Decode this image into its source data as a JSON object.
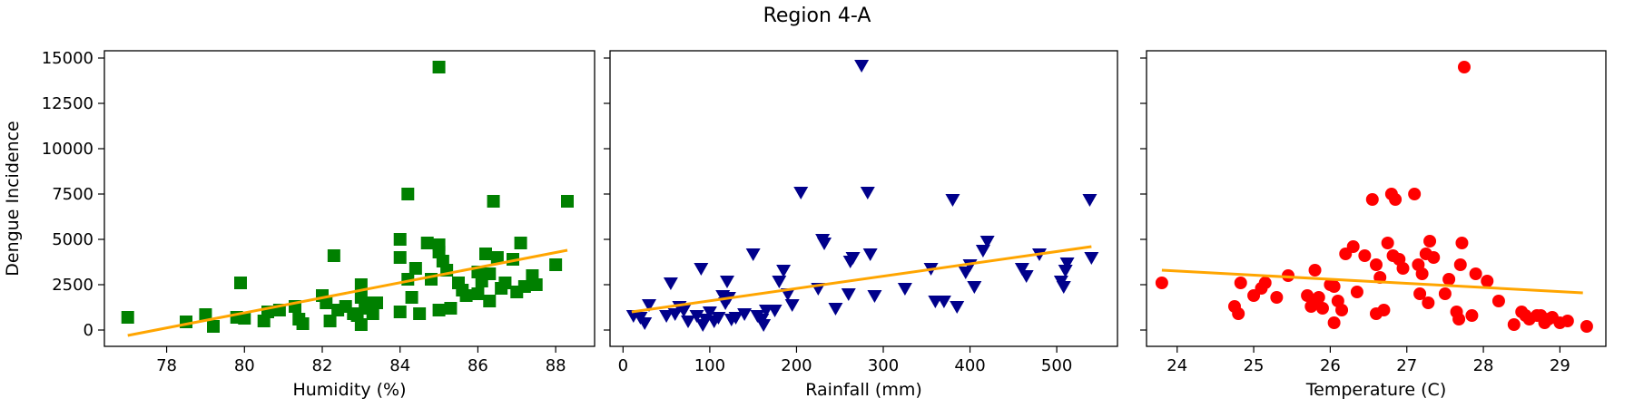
{
  "figure": {
    "title": "Region 4-A"
  },
  "chart_data": [
    {
      "type": "scatter",
      "xlabel": "Humidity (%)",
      "ylabel": "Dengue Incidence",
      "xlim": [
        76.4,
        89.0
      ],
      "ylim": [
        -900,
        15400
      ],
      "xticks": [
        78,
        80,
        82,
        84,
        86,
        88
      ],
      "yticks": [
        0,
        2500,
        5000,
        7500,
        10000,
        12500,
        15000
      ],
      "marker": "square",
      "color": "#008000",
      "trend_color": "#FFA500",
      "trend": {
        "x": [
          77.0,
          88.3
        ],
        "y": [
          -300,
          4400
        ]
      },
      "points": [
        [
          77.0,
          700
        ],
        [
          78.5,
          450
        ],
        [
          79.0,
          850
        ],
        [
          79.2,
          200
        ],
        [
          79.8,
          700
        ],
        [
          79.9,
          2600
        ],
        [
          80.0,
          650
        ],
        [
          80.5,
          500
        ],
        [
          80.6,
          1000
        ],
        [
          80.9,
          1100
        ],
        [
          81.3,
          1300
        ],
        [
          81.4,
          600
        ],
        [
          81.5,
          350
        ],
        [
          82.0,
          1900
        ],
        [
          82.1,
          1500
        ],
        [
          82.2,
          500
        ],
        [
          82.3,
          4100
        ],
        [
          82.4,
          1100
        ],
        [
          82.6,
          1300
        ],
        [
          82.8,
          900
        ],
        [
          82.9,
          800
        ],
        [
          83.0,
          2500
        ],
        [
          83.0,
          1800
        ],
        [
          83.0,
          300
        ],
        [
          83.1,
          1200
        ],
        [
          83.3,
          1500
        ],
        [
          83.3,
          900
        ],
        [
          83.4,
          1500
        ],
        [
          84.0,
          5000
        ],
        [
          84.0,
          4000
        ],
        [
          84.0,
          1000
        ],
        [
          84.2,
          7500
        ],
        [
          84.2,
          2800
        ],
        [
          84.3,
          1800
        ],
        [
          84.4,
          3400
        ],
        [
          84.5,
          900
        ],
        [
          84.7,
          4800
        ],
        [
          84.8,
          2800
        ],
        [
          85.0,
          14500
        ],
        [
          85.0,
          4700
        ],
        [
          85.0,
          4300
        ],
        [
          85.0,
          1100
        ],
        [
          85.1,
          3800
        ],
        [
          85.2,
          3300
        ],
        [
          85.3,
          1200
        ],
        [
          85.5,
          2600
        ],
        [
          85.6,
          2200
        ],
        [
          85.7,
          1900
        ],
        [
          86.0,
          3200
        ],
        [
          86.0,
          2000
        ],
        [
          86.1,
          2700
        ],
        [
          86.2,
          4200
        ],
        [
          86.3,
          1600
        ],
        [
          86.3,
          3100
        ],
        [
          86.4,
          7100
        ],
        [
          86.5,
          4000
        ],
        [
          86.6,
          2300
        ],
        [
          86.7,
          2600
        ],
        [
          86.9,
          3900
        ],
        [
          87.0,
          2100
        ],
        [
          87.1,
          4800
        ],
        [
          87.2,
          2400
        ],
        [
          87.4,
          3000
        ],
        [
          87.5,
          2500
        ],
        [
          88.0,
          3600
        ],
        [
          88.3,
          7100
        ]
      ]
    },
    {
      "type": "scatter",
      "xlabel": "Rainfall (mm)",
      "ylabel": "",
      "xlim": [
        -15,
        570
      ],
      "ylim": [
        -900,
        15400
      ],
      "xticks": [
        0,
        100,
        200,
        300,
        400,
        500
      ],
      "yticks": [
        0,
        2500,
        5000,
        7500,
        10000,
        12500,
        15000
      ],
      "marker": "triangle-down",
      "color": "#00008B",
      "trend_color": "#FFA500",
      "trend": {
        "x": [
          10,
          540
        ],
        "y": [
          1000,
          4600
        ]
      },
      "points": [
        [
          12,
          800
        ],
        [
          20,
          700
        ],
        [
          25,
          400
        ],
        [
          30,
          1400
        ],
        [
          50,
          800
        ],
        [
          55,
          2600
        ],
        [
          60,
          900
        ],
        [
          65,
          1300
        ],
        [
          70,
          1100
        ],
        [
          75,
          500
        ],
        [
          85,
          800
        ],
        [
          90,
          3400
        ],
        [
          92,
          300
        ],
        [
          95,
          600
        ],
        [
          100,
          1000
        ],
        [
          105,
          500
        ],
        [
          110,
          700
        ],
        [
          115,
          1900
        ],
        [
          118,
          1500
        ],
        [
          120,
          2700
        ],
        [
          122,
          1800
        ],
        [
          125,
          600
        ],
        [
          130,
          700
        ],
        [
          140,
          900
        ],
        [
          150,
          4200
        ],
        [
          155,
          800
        ],
        [
          160,
          600
        ],
        [
          162,
          300
        ],
        [
          165,
          1100
        ],
        [
          175,
          1100
        ],
        [
          180,
          2700
        ],
        [
          185,
          3300
        ],
        [
          190,
          2000
        ],
        [
          195,
          1400
        ],
        [
          205,
          7600
        ],
        [
          225,
          2300
        ],
        [
          230,
          5000
        ],
        [
          232,
          4800
        ],
        [
          245,
          1200
        ],
        [
          260,
          2000
        ],
        [
          262,
          3800
        ],
        [
          265,
          4000
        ],
        [
          275,
          14600
        ],
        [
          282,
          7600
        ],
        [
          285,
          4200
        ],
        [
          290,
          1900
        ],
        [
          325,
          2300
        ],
        [
          355,
          3400
        ],
        [
          360,
          1600
        ],
        [
          370,
          1600
        ],
        [
          380,
          7200
        ],
        [
          385,
          1300
        ],
        [
          395,
          3200
        ],
        [
          400,
          3600
        ],
        [
          405,
          2400
        ],
        [
          415,
          4400
        ],
        [
          420,
          4900
        ],
        [
          460,
          3400
        ],
        [
          465,
          3000
        ],
        [
          480,
          4200
        ],
        [
          505,
          2700
        ],
        [
          508,
          2400
        ],
        [
          510,
          3300
        ],
        [
          512,
          3700
        ],
        [
          538,
          7200
        ],
        [
          540,
          4000
        ]
      ]
    },
    {
      "type": "scatter",
      "xlabel": "Temperature (C)",
      "ylabel": "",
      "xlim": [
        23.6,
        29.6
      ],
      "ylim": [
        -900,
        15400
      ],
      "xticks": [
        24,
        25,
        26,
        27,
        28,
        29
      ],
      "yticks": [
        0,
        2500,
        5000,
        7500,
        10000,
        12500,
        15000
      ],
      "marker": "circle",
      "color": "#FF0000",
      "trend_color": "#FFA500",
      "trend": {
        "x": [
          23.8,
          29.3
        ],
        "y": [
          3300,
          2050
        ]
      },
      "points": [
        [
          23.8,
          2600
        ],
        [
          24.75,
          1300
        ],
        [
          24.8,
          900
        ],
        [
          24.83,
          2600
        ],
        [
          25.0,
          1900
        ],
        [
          25.1,
          2300
        ],
        [
          25.15,
          2600
        ],
        [
          25.3,
          1800
        ],
        [
          25.45,
          3000
        ],
        [
          25.7,
          1900
        ],
        [
          25.75,
          1300
        ],
        [
          25.78,
          1500
        ],
        [
          25.8,
          3300
        ],
        [
          25.85,
          1800
        ],
        [
          25.9,
          1200
        ],
        [
          26.0,
          2500
        ],
        [
          26.05,
          400
        ],
        [
          26.05,
          2400
        ],
        [
          26.1,
          1600
        ],
        [
          26.15,
          1100
        ],
        [
          26.2,
          4200
        ],
        [
          26.3,
          4600
        ],
        [
          26.35,
          2100
        ],
        [
          26.45,
          4100
        ],
        [
          26.55,
          7200
        ],
        [
          26.6,
          3600
        ],
        [
          26.6,
          900
        ],
        [
          26.65,
          2900
        ],
        [
          26.7,
          1100
        ],
        [
          26.75,
          4800
        ],
        [
          26.8,
          7500
        ],
        [
          26.82,
          4100
        ],
        [
          26.85,
          7200
        ],
        [
          26.9,
          3900
        ],
        [
          26.95,
          3400
        ],
        [
          27.1,
          7500
        ],
        [
          27.15,
          3600
        ],
        [
          27.17,
          2000
        ],
        [
          27.2,
          3100
        ],
        [
          27.25,
          4200
        ],
        [
          27.28,
          1500
        ],
        [
          27.3,
          4900
        ],
        [
          27.35,
          4000
        ],
        [
          27.5,
          2000
        ],
        [
          27.55,
          2800
        ],
        [
          27.65,
          1000
        ],
        [
          27.68,
          600
        ],
        [
          27.7,
          3600
        ],
        [
          27.72,
          4800
        ],
        [
          27.75,
          14500
        ],
        [
          27.85,
          800
        ],
        [
          27.9,
          3100
        ],
        [
          28.05,
          2700
        ],
        [
          28.2,
          1600
        ],
        [
          28.4,
          300
        ],
        [
          28.5,
          1000
        ],
        [
          28.55,
          800
        ],
        [
          28.6,
          600
        ],
        [
          28.7,
          800
        ],
        [
          28.75,
          800
        ],
        [
          28.8,
          400
        ],
        [
          28.85,
          600
        ],
        [
          28.9,
          700
        ],
        [
          29.0,
          400
        ],
        [
          29.1,
          500
        ],
        [
          29.35,
          200
        ]
      ]
    }
  ]
}
